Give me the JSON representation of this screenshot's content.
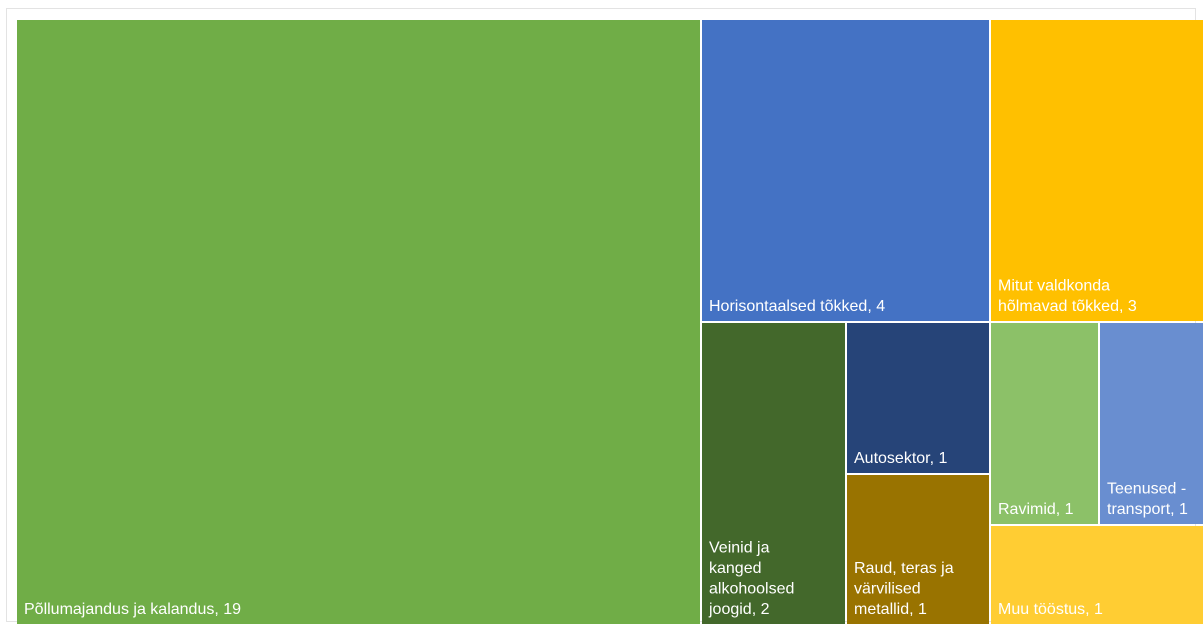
{
  "chart_data": {
    "type": "treemap",
    "title": "",
    "series": [
      {
        "name": "Põllumajandus ja kalandus",
        "value": 19,
        "color": "#70AD47",
        "label_lines": [
          "Põllumajandus ja kalandus, 19"
        ]
      },
      {
        "name": "Horisontaalsed tõkked",
        "value": 4,
        "color": "#4472C4",
        "label_lines": [
          "Horisontaalsed tõkked, 4"
        ]
      },
      {
        "name": "Mitut valdkonda hõlmavad tõkked",
        "value": 3,
        "color": "#FFC000",
        "label_lines": [
          "Mitut valdkonda",
          "hõlmavad tõkked, 3"
        ]
      },
      {
        "name": "Veinid ja kanged alkohoolsed joogid",
        "value": 2,
        "color": "#43682B",
        "label_lines": [
          "Veinid ja",
          "kanged",
          "alkohoolsed",
          "joogid, 2"
        ]
      },
      {
        "name": "Autosektor",
        "value": 1,
        "color": "#264478",
        "label_lines": [
          "Autosektor, 1"
        ]
      },
      {
        "name": "Raud, teras ja värvilised metallid",
        "value": 1,
        "color": "#997300",
        "label_lines": [
          "Raud, teras ja",
          "värvilised",
          "metallid, 1"
        ]
      },
      {
        "name": "Ravimid",
        "value": 1,
        "color": "#8CC168",
        "label_lines": [
          "Ravimid, 1"
        ]
      },
      {
        "name": "Teenused - transport",
        "value": 1,
        "color": "#698ED0",
        "label_lines": [
          "Teenused -",
          "transport, 1"
        ]
      },
      {
        "name": "Muu tööstus",
        "value": 1,
        "color": "#FFCD33",
        "label_lines": [
          "Muu tööstus, 1"
        ]
      }
    ]
  }
}
